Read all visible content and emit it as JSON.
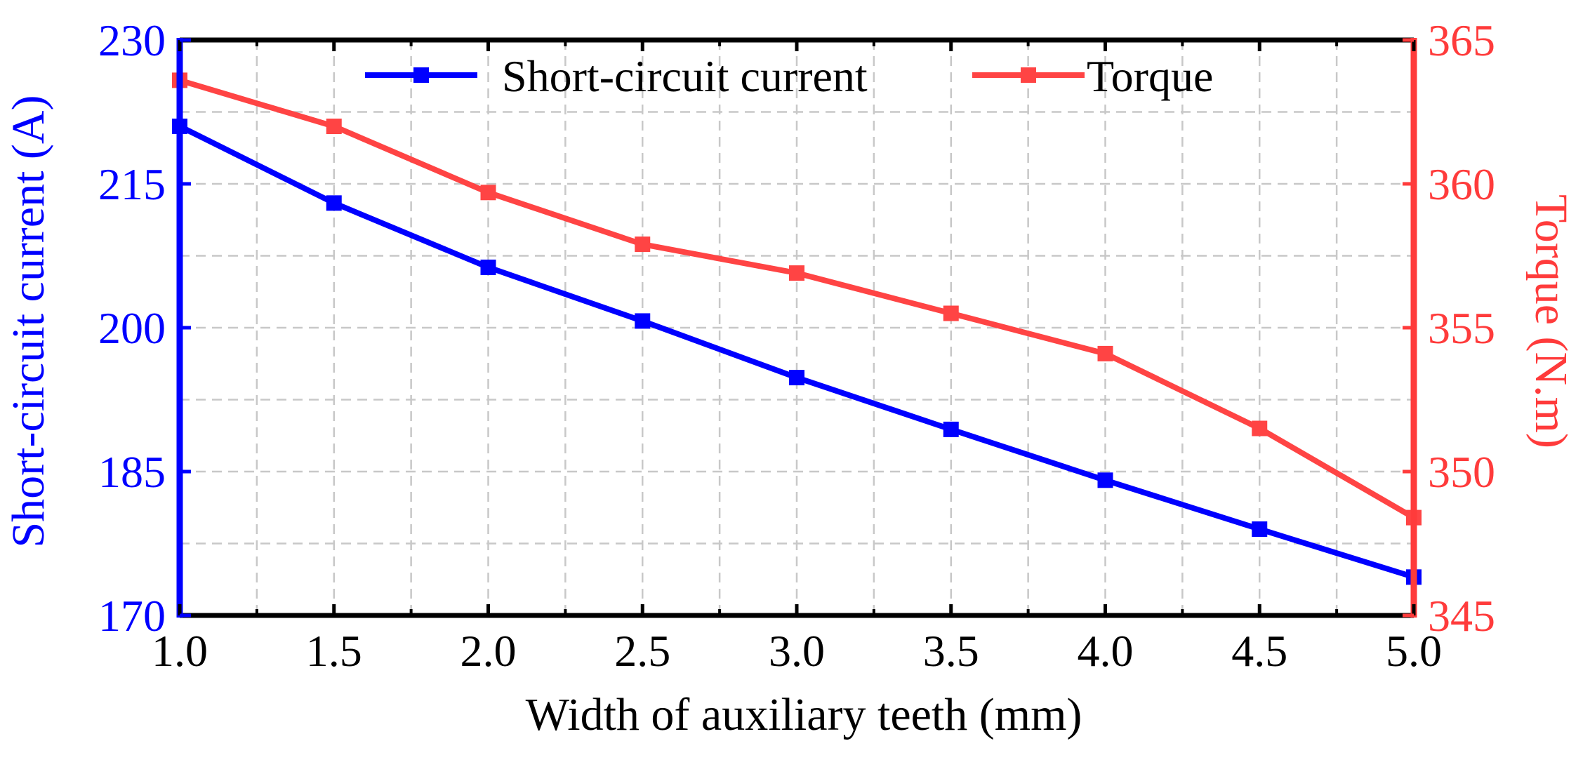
{
  "colors": {
    "left_axis": "#0000ff",
    "right_axis": "#ff3b3b",
    "frame": "#000000",
    "grid": "#c8c8c8",
    "series_current": "#0000ff",
    "series_torque": "#ff4444"
  },
  "chart_data": {
    "type": "line",
    "xlabel": "Width of auxiliary teeth (mm)",
    "ylabel_left": "Short-circuit current (A)",
    "ylabel_right": "Torque (N.m)",
    "xlim": [
      1.0,
      5.0
    ],
    "ylim_left": [
      170,
      230
    ],
    "ylim_right": [
      345,
      365
    ],
    "x_ticks": [
      "1.0",
      "1.5",
      "2.0",
      "2.5",
      "3.0",
      "3.5",
      "4.0",
      "4.5",
      "5.0"
    ],
    "y_left_ticks": [
      "170",
      "185",
      "200",
      "215",
      "230"
    ],
    "y_right_ticks": [
      "345",
      "350",
      "355",
      "360",
      "365"
    ],
    "grid": true,
    "legend_position": "top",
    "x": [
      1.0,
      1.5,
      2.0,
      2.5,
      3.0,
      3.5,
      4.0,
      4.5,
      5.0
    ],
    "series": [
      {
        "name": "Short-circuit current",
        "axis": "left",
        "values": [
          221.0,
          213.0,
          206.3,
          200.7,
          194.8,
          189.4,
          184.1,
          179.0,
          174.0
        ]
      },
      {
        "name": "Torque",
        "axis": "right",
        "values": [
          363.6,
          362.0,
          359.7,
          357.9,
          356.9,
          355.5,
          354.1,
          351.5,
          348.4
        ]
      }
    ]
  }
}
